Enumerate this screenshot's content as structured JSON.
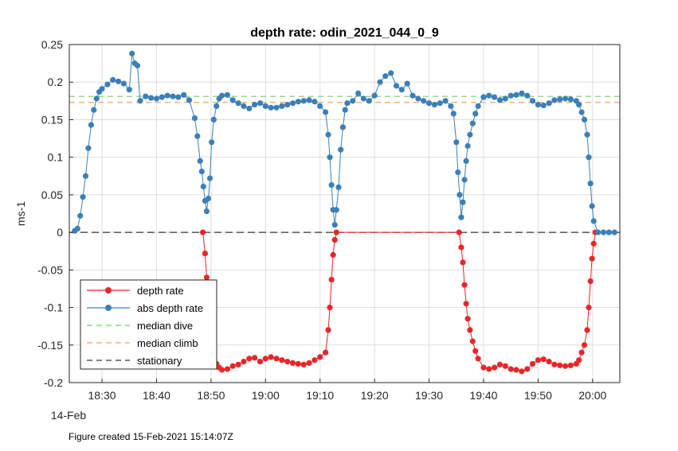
{
  "chart_data": {
    "type": "line",
    "title": "depth rate: odin_2021_044_0_9",
    "xlabel": "",
    "ylabel": "ms-1",
    "x_date_label": "14-Feb",
    "x_ticks": [
      "18:30",
      "18:40",
      "18:50",
      "19:00",
      "19:10",
      "19:20",
      "19:30",
      "19:40",
      "19:50",
      "20:00"
    ],
    "xlim": [
      "18:24",
      "20:05"
    ],
    "ylim": [
      -0.2,
      0.25
    ],
    "y_ticks": [
      "-0.2",
      "-0.15",
      "-0.1",
      "-0.05",
      "0",
      "0.05",
      "0.1",
      "0.15",
      "0.2",
      "0.25"
    ],
    "grid": true,
    "legend_position": "bottom-left",
    "series": [
      {
        "name": "depth rate",
        "color": "#e8262a",
        "marker": "circle",
        "x": [
          "18:48.5",
          "18:48.9",
          "18:49.2",
          "18:49.5",
          "18:49.8",
          "18:50.1",
          "18:50.5",
          "18:51",
          "18:51.5",
          "18:52",
          "18:53",
          "18:54",
          "18:55",
          "18:56",
          "18:57",
          "18:58",
          "18:59",
          "19:00",
          "19:01",
          "19:02",
          "19:03",
          "19:04",
          "19:05",
          "19:06",
          "19:07",
          "19:08",
          "19:09",
          "19:10",
          "19:11",
          "19:11.5",
          "19:11.8",
          "19:12.1",
          "19:12.4",
          "19:12.7",
          "19:13",
          "19:35.5",
          "19:35.9",
          "19:36.2",
          "19:36.5",
          "19:36.8",
          "19:37.1",
          "19:37.5",
          "19:38",
          "19:38.5",
          "19:39",
          "19:40",
          "19:41",
          "19:42",
          "19:43",
          "19:44",
          "19:45",
          "19:46",
          "19:47",
          "19:48",
          "19:49",
          "19:50",
          "19:51",
          "19:52",
          "19:53",
          "19:54",
          "19:55",
          "19:56",
          "19:57",
          "19:57.5",
          "19:58",
          "19:58.5",
          "19:59",
          "19:59.3",
          "19:59.6",
          "19:59.9",
          "20:00.2",
          "20:00.5"
        ],
        "y": [
          0,
          -0.028,
          -0.06,
          -0.1,
          -0.13,
          -0.15,
          -0.165,
          -0.175,
          -0.18,
          -0.183,
          -0.182,
          -0.178,
          -0.176,
          -0.172,
          -0.168,
          -0.167,
          -0.172,
          -0.168,
          -0.166,
          -0.168,
          -0.17,
          -0.172,
          -0.174,
          -0.175,
          -0.176,
          -0.174,
          -0.17,
          -0.166,
          -0.16,
          -0.13,
          -0.1,
          -0.063,
          -0.03,
          -0.01,
          0,
          0,
          -0.02,
          -0.04,
          -0.07,
          -0.095,
          -0.115,
          -0.13,
          -0.145,
          -0.158,
          -0.168,
          -0.18,
          -0.182,
          -0.18,
          -0.176,
          -0.178,
          -0.182,
          -0.183,
          -0.185,
          -0.182,
          -0.175,
          -0.17,
          -0.169,
          -0.172,
          -0.176,
          -0.177,
          -0.178,
          -0.177,
          -0.175,
          -0.17,
          -0.16,
          -0.15,
          -0.13,
          -0.1,
          -0.065,
          -0.035,
          -0.015,
          0
        ]
      },
      {
        "name": "abs depth rate",
        "color": "#3c7fb8",
        "marker": "circle",
        "x": [
          "18:25",
          "18:25.5",
          "18:26",
          "18:26.5",
          "18:27",
          "18:27.5",
          "18:28",
          "18:28.5",
          "18:29",
          "18:29.5",
          "18:30",
          "18:31",
          "18:32",
          "18:33",
          "18:34",
          "18:35",
          "18:35.5",
          "18:36",
          "18:36.5",
          "18:37",
          "18:38",
          "18:39",
          "18:40",
          "18:41",
          "18:42",
          "18:43",
          "18:44",
          "18:45",
          "18:46",
          "18:47",
          "18:47.5",
          "18:48",
          "18:48.3",
          "18:48.6",
          "18:48.9",
          "18:49.2",
          "18:49.5",
          "18:49.8",
          "18:50.1",
          "18:50.5",
          "18:51",
          "18:51.5",
          "18:52",
          "18:53",
          "18:54",
          "18:55",
          "18:56",
          "18:57",
          "18:58",
          "18:59",
          "19:00",
          "19:01",
          "19:02",
          "19:03",
          "19:04",
          "19:05",
          "19:06",
          "19:07",
          "19:08",
          "19:09",
          "19:10",
          "19:11",
          "19:11.5",
          "19:11.8",
          "19:12.1",
          "19:12.4",
          "19:12.7",
          "19:13",
          "19:13.4",
          "19:13.8",
          "19:14.2",
          "19:14.6",
          "19:15",
          "19:16",
          "19:17",
          "19:18",
          "19:19",
          "19:20",
          "19:21",
          "19:22",
          "19:23",
          "19:24",
          "19:25",
          "19:26",
          "19:27",
          "19:28",
          "19:29",
          "19:30",
          "19:31",
          "19:32",
          "19:33",
          "19:34",
          "19:34.5",
          "19:35",
          "19:35.3",
          "19:35.6",
          "19:35.9",
          "19:36.2",
          "19:36.5",
          "19:36.8",
          "19:37.1",
          "19:37.5",
          "19:38",
          "19:38.5",
          "19:39",
          "19:40",
          "19:41",
          "19:42",
          "19:43",
          "19:44",
          "19:45",
          "19:46",
          "19:47",
          "19:48",
          "19:49",
          "19:50",
          "19:51",
          "19:52",
          "19:53",
          "19:54",
          "19:55",
          "19:56",
          "19:57",
          "19:57.5",
          "19:58",
          "19:58.5",
          "19:59",
          "19:59.3",
          "19:59.6",
          "19:59.9",
          "20:00.2",
          "20:01",
          "20:02",
          "20:03",
          "20:04"
        ],
        "y": [
          0.002,
          0.005,
          0.022,
          0.047,
          0.075,
          0.112,
          0.143,
          0.163,
          0.178,
          0.187,
          0.191,
          0.197,
          0.203,
          0.201,
          0.198,
          0.19,
          0.238,
          0.225,
          0.222,
          0.175,
          0.181,
          0.179,
          0.178,
          0.18,
          0.182,
          0.181,
          0.18,
          0.183,
          0.176,
          0.152,
          0.128,
          0.095,
          0.081,
          0.061,
          0.042,
          0.028,
          0.045,
          0.072,
          0.12,
          0.15,
          0.168,
          0.178,
          0.182,
          0.183,
          0.176,
          0.172,
          0.168,
          0.165,
          0.17,
          0.172,
          0.168,
          0.166,
          0.166,
          0.168,
          0.17,
          0.172,
          0.174,
          0.175,
          0.176,
          0.174,
          0.168,
          0.16,
          0.13,
          0.1,
          0.063,
          0.03,
          0.01,
          0.03,
          0.06,
          0.11,
          0.14,
          0.163,
          0.172,
          0.175,
          0.185,
          0.178,
          0.175,
          0.182,
          0.2,
          0.208,
          0.212,
          0.195,
          0.19,
          0.198,
          0.182,
          0.178,
          0.175,
          0.172,
          0.17,
          0.172,
          0.175,
          0.168,
          0.158,
          0.12,
          0.08,
          0.05,
          0.02,
          0.04,
          0.07,
          0.095,
          0.115,
          0.13,
          0.145,
          0.158,
          0.168,
          0.18,
          0.182,
          0.18,
          0.176,
          0.178,
          0.182,
          0.183,
          0.185,
          0.182,
          0.175,
          0.17,
          0.169,
          0.172,
          0.176,
          0.177,
          0.178,
          0.177,
          0.175,
          0.17,
          0.16,
          0.15,
          0.13,
          0.1,
          0.065,
          0.035,
          0.015,
          0,
          0,
          0,
          0
        ]
      },
      {
        "name": "median dive",
        "color": "#7fc97f",
        "style": "dashed",
        "y_constant": 0.181
      },
      {
        "name": "median climb",
        "color": "#f4a460",
        "style": "dashed",
        "y_constant": 0.173
      },
      {
        "name": "stationary",
        "color": "#333333",
        "style": "dashed",
        "y_constant": 0
      }
    ]
  },
  "footnote": "Figure created 15-Feb-2021 15:14:07Z"
}
